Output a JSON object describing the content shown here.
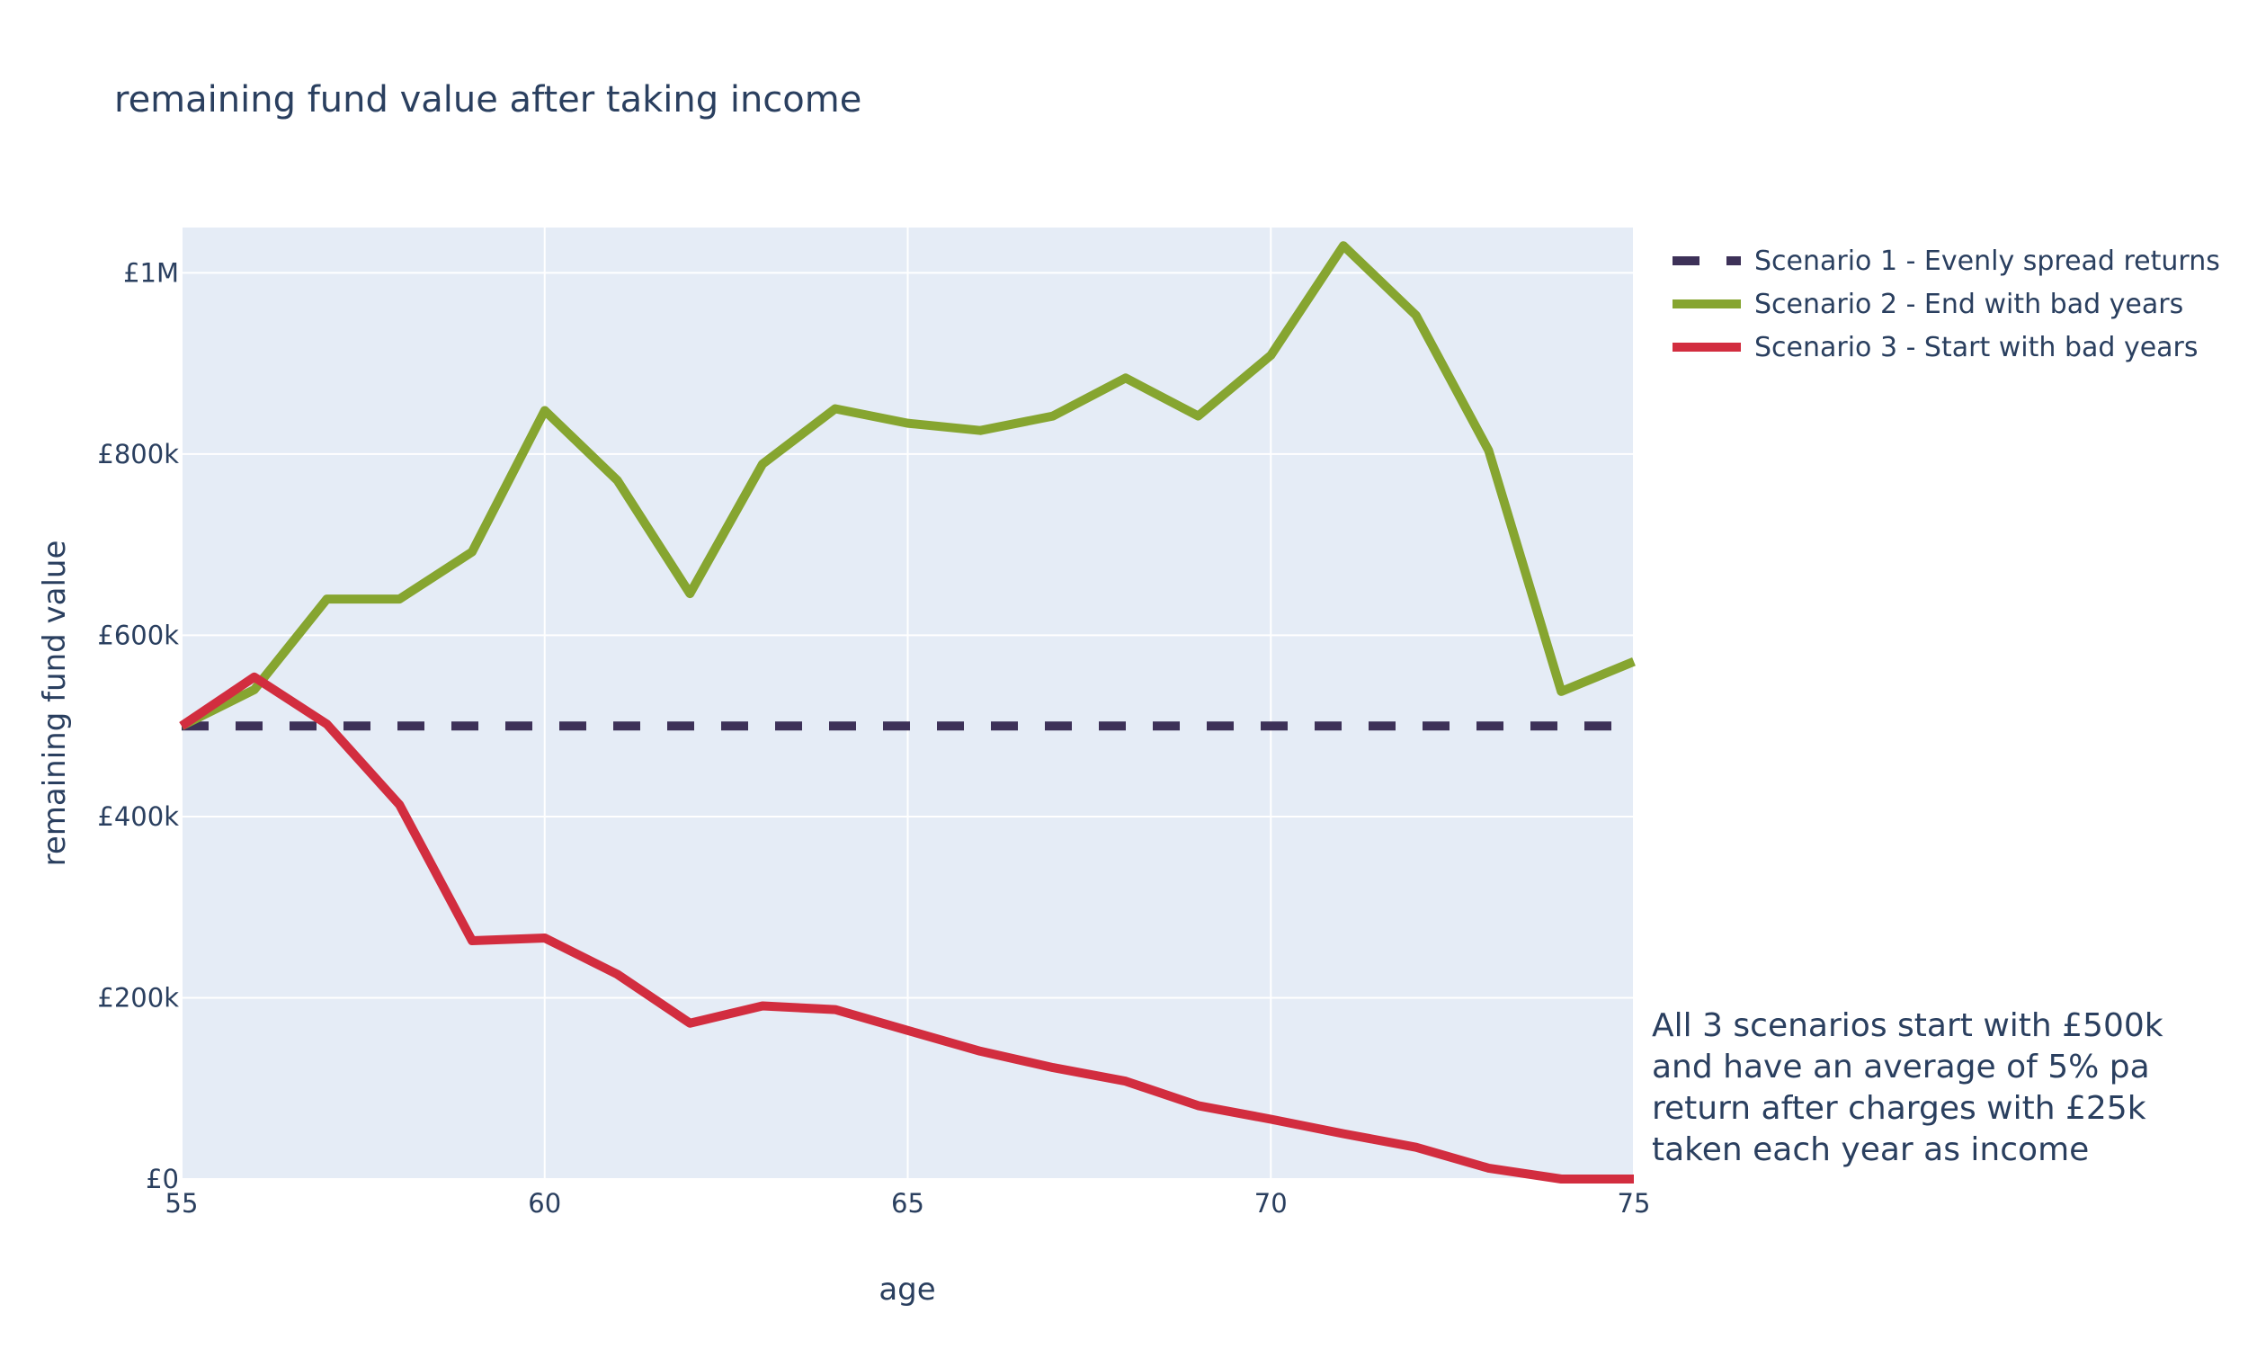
{
  "chart_data": {
    "type": "line",
    "title": "remaining fund value after taking income",
    "xlabel": "age",
    "ylabel": "remaining fund value",
    "xlim": [
      55,
      75
    ],
    "ylim": [
      0,
      1050000
    ],
    "x_ticks": [
      55,
      60,
      65,
      70,
      75
    ],
    "x_tick_labels": [
      "55",
      "60",
      "65",
      "70",
      "75"
    ],
    "y_ticks": [
      0,
      200000,
      400000,
      600000,
      800000,
      1000000
    ],
    "y_tick_labels": [
      "£0",
      "£200k",
      "£400k",
      "£600k",
      "£800k",
      "£1M"
    ],
    "grid": true,
    "legend_position": "top-right, outside plot",
    "plot_background": "#e5ecf6",
    "gridline_color": "#ffffff",
    "x": [
      55,
      56,
      57,
      58,
      59,
      60,
      61,
      62,
      63,
      64,
      65,
      66,
      67,
      68,
      69,
      70,
      71,
      72,
      73,
      74,
      75
    ],
    "series": [
      {
        "name": "Scenario 1 - Evenly spread returns",
        "color": "#3d3158",
        "dash": "dashed",
        "values": [
          500000,
          500000,
          500000,
          500000,
          500000,
          500000,
          500000,
          500000,
          500000,
          500000,
          500000,
          500000,
          500000,
          500000,
          500000,
          500000,
          500000,
          500000,
          500000,
          500000,
          500000
        ]
      },
      {
        "name": "Scenario 2 - End with bad years",
        "color": "#86a530",
        "dash": "solid",
        "values": [
          500000,
          540000,
          640000,
          640000,
          692000,
          848000,
          771000,
          646000,
          789000,
          850000,
          834000,
          826000,
          842000,
          884000,
          842000,
          909000,
          1030000,
          953000,
          804000,
          538000,
          571000
        ]
      },
      {
        "name": "Scenario 3 - Start with bad years",
        "color": "#d22d3f",
        "dash": "solid",
        "values": [
          500000,
          554000,
          502000,
          413000,
          263000,
          266000,
          226000,
          172000,
          191000,
          187000,
          164000,
          141000,
          123000,
          108000,
          81000,
          66000,
          50000,
          35000,
          12000,
          0,
          0
        ]
      }
    ],
    "annotation": {
      "lines": [
        "All 3 scenarios start with £500k",
        "and have an average of 5% pa",
        "return after charges with £25k",
        "taken each year as income"
      ]
    }
  }
}
